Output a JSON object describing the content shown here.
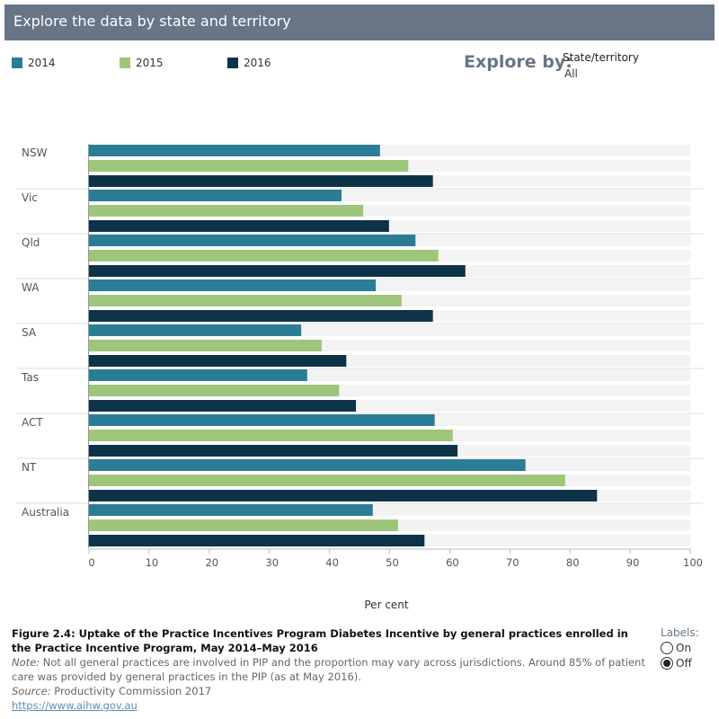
{
  "header": {
    "title": "Explore the data by state and territory"
  },
  "filter": {
    "label": "Explore by:",
    "field": "State/territory",
    "value": "All"
  },
  "chart_data": {
    "type": "bar",
    "orientation": "horizontal",
    "categories": [
      "NSW",
      "Vic",
      "Qld",
      "WA",
      "SA",
      "Tas",
      "ACT",
      "NT",
      "Australia"
    ],
    "series": [
      {
        "name": "2014",
        "color": "#2b7d95",
        "values": [
          48.4,
          42.0,
          54.3,
          47.7,
          35.3,
          36.3,
          57.5,
          72.6,
          47.2
        ]
      },
      {
        "name": "2015",
        "color": "#9dc67a",
        "values": [
          53.1,
          45.6,
          58.1,
          52.0,
          38.7,
          41.6,
          60.5,
          79.2,
          51.4
        ]
      },
      {
        "name": "2016",
        "color": "#0d3349",
        "values": [
          57.2,
          49.9,
          62.6,
          57.2,
          42.8,
          44.4,
          61.3,
          84.5,
          55.8
        ]
      }
    ],
    "xlabel": "Per cent",
    "xlim": [
      0,
      100
    ],
    "xticks": [
      0,
      10,
      20,
      30,
      40,
      50,
      60,
      70,
      80,
      90,
      100
    ],
    "legend": "top-left",
    "grid": false
  },
  "caption": {
    "title": "Figure 2.4: Uptake of the Practice Incentives Program Diabetes Incentive by general practices enrolled in the Practice Incentive Program, May 2014–May 2016",
    "note_label": "Note:",
    "note": " Not all general practices are involved in PIP and the proportion may vary across jurisdictions. Around 85% of patient care was provided by general practices in the PIP (as at May 2016).",
    "source_label": "Source:",
    "source": " Productivity Commission 2017",
    "url": "https://www.aihw.gov.au"
  },
  "labels_toggle": {
    "label": "Labels:",
    "on": "On",
    "off": "Off",
    "selected": "Off"
  }
}
